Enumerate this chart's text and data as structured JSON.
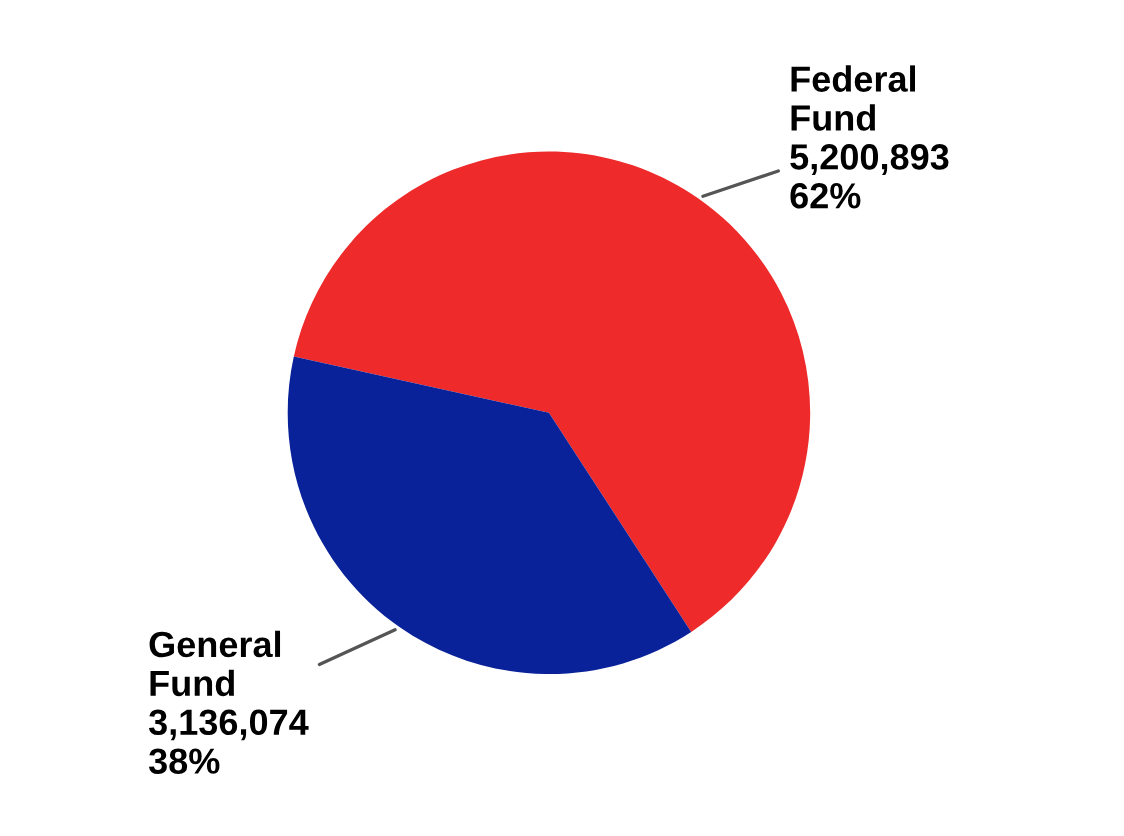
{
  "chart_data": {
    "type": "pie",
    "categories": [
      "Federal\nFund",
      "General\nFund"
    ],
    "values": [
      5200893,
      3136074
    ],
    "colors": [
      "#ee2a2a",
      "#0a2299"
    ],
    "value_labels": [
      "5,200,893\n62%",
      "3,136,074\n38%"
    ]
  }
}
